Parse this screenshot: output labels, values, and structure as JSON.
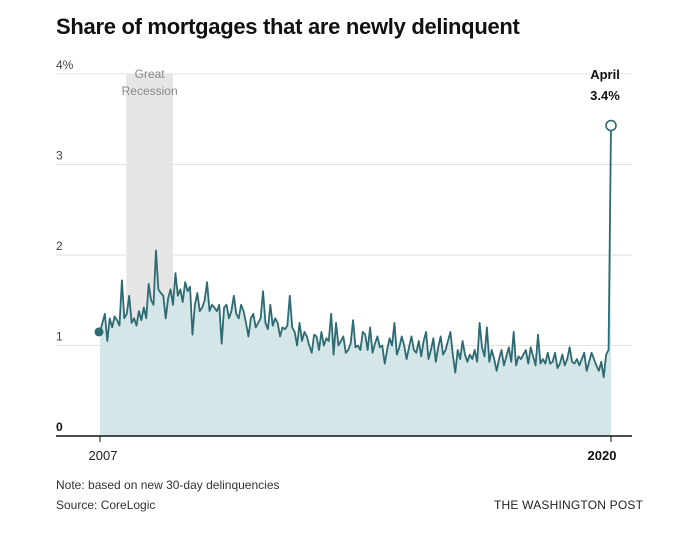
{
  "header": {
    "title": "Share of mortgages that are newly delinquent"
  },
  "footer": {
    "note": "Note: based on new 30-day delinquencies",
    "source": "Source: CoreLogic",
    "brand": "THE WASHINGTON POST"
  },
  "colors": {
    "area": "#d4e6e8",
    "line": "#2d6a72",
    "shade": "#e6e6e6",
    "grid": "#e2e2e2",
    "baseline": "#111111"
  },
  "chart_data": {
    "type": "area",
    "title": "Share of mortgages that are newly delinquent",
    "xlabel": "",
    "ylabel": "",
    "units": "%",
    "x_start": 2007,
    "x_end_label": "April 2020",
    "frequency": "monthly",
    "ylim": [
      0,
      4
    ],
    "yticks": [
      "4%",
      "3",
      "2",
      "1",
      "0"
    ],
    "ytick_values": [
      4,
      3,
      2,
      1,
      0
    ],
    "xticks": [
      "2007",
      "2020"
    ],
    "shaded_region": {
      "label_line1": "Great",
      "label_line2": "Recession",
      "start": 2007.9,
      "end": 2009.5
    },
    "annotation": {
      "label_line1": "April",
      "label_line2": "3.4%",
      "value": 3.4
    },
    "values": [
      1.15,
      1.25,
      1.35,
      1.05,
      1.3,
      1.2,
      1.32,
      1.28,
      1.22,
      1.72,
      1.3,
      1.35,
      1.55,
      1.25,
      1.3,
      1.22,
      1.38,
      1.28,
      1.42,
      1.3,
      1.68,
      1.5,
      1.45,
      2.05,
      1.62,
      1.58,
      1.55,
      1.3,
      1.52,
      1.62,
      1.45,
      1.8,
      1.55,
      1.62,
      1.48,
      1.7,
      1.6,
      1.65,
      1.12,
      1.45,
      1.58,
      1.38,
      1.42,
      1.5,
      1.7,
      1.38,
      1.45,
      1.42,
      1.38,
      1.45,
      1.02,
      1.42,
      1.45,
      1.3,
      1.38,
      1.55,
      1.35,
      1.3,
      1.45,
      1.38,
      1.25,
      1.1,
      1.3,
      1.35,
      1.2,
      1.25,
      1.3,
      1.6,
      1.25,
      1.18,
      1.45,
      1.22,
      1.3,
      1.25,
      1.1,
      1.2,
      1.18,
      1.22,
      1.55,
      1.2,
      1.15,
      1.0,
      1.25,
      1.05,
      1.15,
      1.1,
      1.0,
      0.92,
      1.12,
      1.1,
      0.95,
      1.15,
      1.0,
      1.08,
      1.05,
      1.35,
      0.9,
      1.25,
      1.0,
      1.05,
      1.1,
      0.92,
      0.95,
      1.02,
      1.28,
      0.98,
      1.0,
      0.95,
      1.15,
      1.12,
      0.95,
      1.2,
      0.92,
      1.02,
      1.1,
      0.98,
      1.0,
      0.8,
      0.95,
      1.08,
      1.0,
      1.25,
      0.9,
      0.98,
      1.1,
      1.0,
      0.85,
      0.98,
      1.1,
      0.95,
      0.92,
      1.05,
      0.88,
      1.05,
      1.15,
      0.85,
      0.95,
      1.08,
      0.82,
      0.98,
      1.1,
      0.9,
      0.95,
      1.05,
      1.15,
      0.9,
      0.7,
      0.95,
      0.85,
      1.05,
      0.9,
      0.82,
      0.9,
      0.85,
      0.95,
      0.82,
      1.25,
      0.98,
      0.88,
      1.2,
      0.82,
      0.95,
      0.85,
      0.72,
      0.85,
      0.95,
      0.78,
      0.88,
      0.98,
      0.82,
      1.15,
      0.78,
      0.88,
      0.85,
      0.9,
      0.95,
      0.8,
      0.98,
      0.88,
      0.78,
      1.12,
      0.8,
      0.85,
      0.8,
      0.92,
      0.8,
      0.82,
      0.92,
      0.75,
      0.8,
      0.9,
      0.78,
      0.85,
      0.98,
      0.82,
      0.8,
      0.85,
      0.78,
      0.85,
      0.92,
      0.72,
      0.82,
      0.92,
      0.85,
      0.78,
      0.72,
      0.82,
      0.65,
      0.9,
      0.95,
      3.43
    ]
  }
}
